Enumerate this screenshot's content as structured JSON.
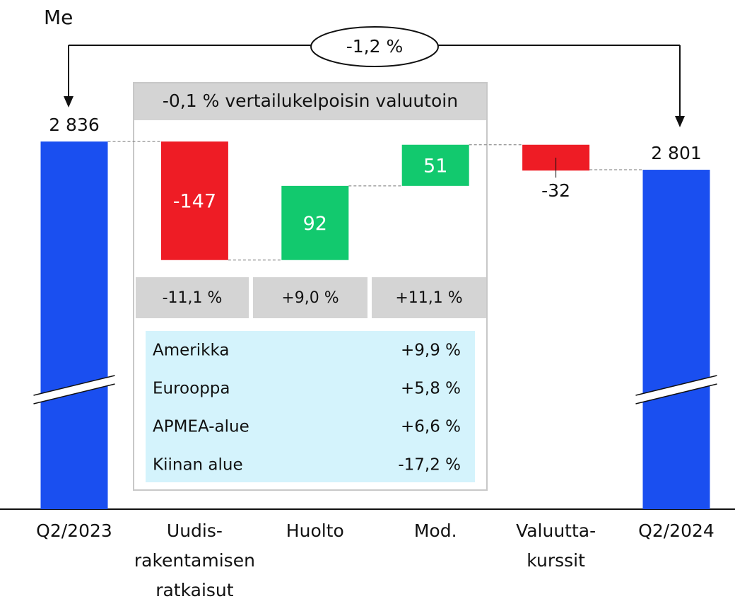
{
  "chart_data": {
    "type": "waterfall",
    "unit_label": "Me",
    "categories": [
      "Q2/2023",
      "Uudis-\nrakentamisen\nratkaisut",
      "Huolto",
      "Mod.",
      "Valuutta-\nkurssit",
      "Q2/2024"
    ],
    "measure": [
      "total",
      "relative",
      "relative",
      "relative",
      "relative",
      "total"
    ],
    "values": [
      2836,
      -147,
      92,
      51,
      -32,
      2801
    ],
    "value_labels": [
      "2 836",
      "-147",
      "92",
      "51",
      "-32",
      "2 801"
    ],
    "colors": {
      "total": "#1a4ff0",
      "increase": "#12c96e",
      "decrease": "#ee1c25"
    },
    "ylim": [
      2380,
      2880
    ],
    "axis_break": true,
    "total_change": "-1,2 %",
    "comparable": {
      "title": "-0,1 % vertailukelpoisin valuutoin",
      "segments": [
        "-11,1 %",
        "+9,0 %",
        "+11,1 %"
      ],
      "regions": [
        {
          "name": "Amerikka",
          "change": "+9,9 %"
        },
        {
          "name": "Eurooppa",
          "change": "+5,8 %"
        },
        {
          "name": "APMEA-alue",
          "change": "+6,6 %"
        },
        {
          "name": "Kiinan alue",
          "change": "-17,2 %"
        }
      ]
    }
  }
}
